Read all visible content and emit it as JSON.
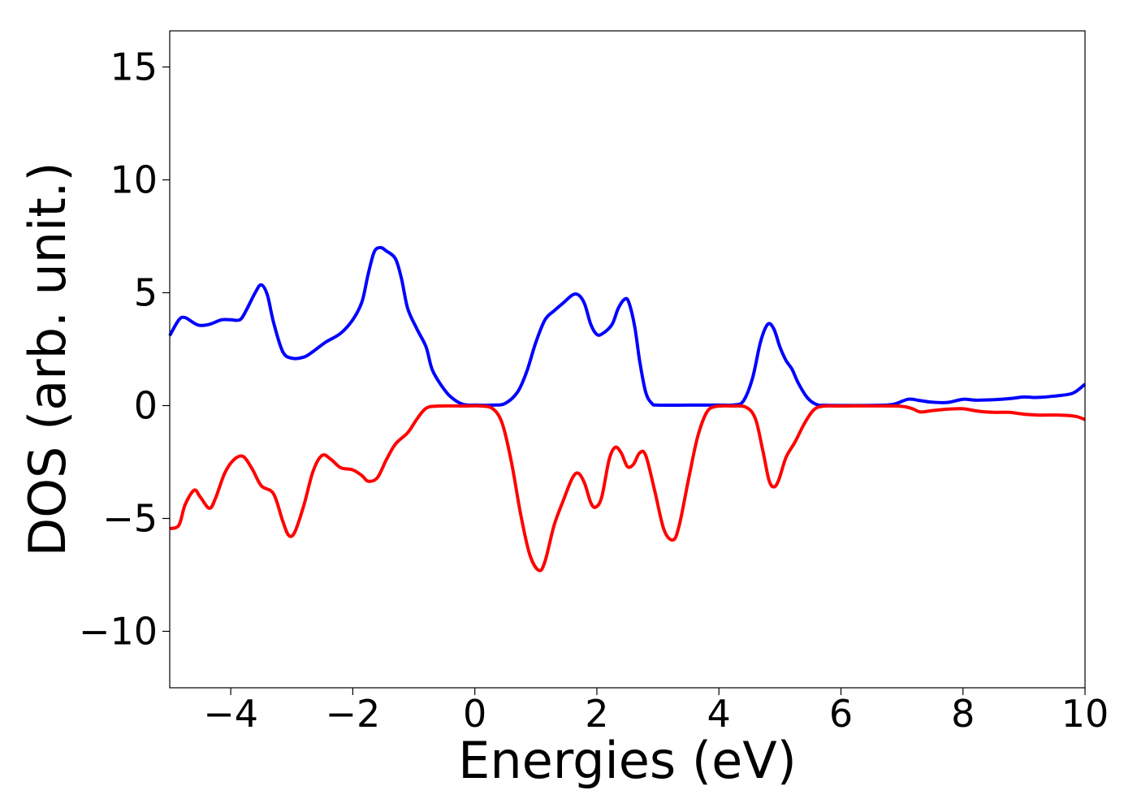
{
  "chart_data": {
    "type": "line",
    "title": "",
    "xlabel": "Energies (eV)",
    "ylabel": "DOS (arb. unit.)",
    "xlim": [
      -5,
      10
    ],
    "ylim": [
      -12.5,
      16.6
    ],
    "xticks": [
      -4,
      -2,
      0,
      2,
      4,
      6,
      8,
      10
    ],
    "xtick_labels": [
      "−4",
      "−2",
      "0",
      "2",
      "4",
      "6",
      "8",
      "10"
    ],
    "yticks": [
      -10,
      -5,
      0,
      5,
      10,
      15
    ],
    "ytick_labels": [
      "−10",
      "−5",
      "0",
      "5",
      "10",
      "15"
    ],
    "grid": false,
    "legend": "none",
    "series": [
      {
        "color": "#0000ff",
        "points": [
          [
            -5.0,
            3.1
          ],
          [
            -4.85,
            3.8
          ],
          [
            -4.75,
            3.9
          ],
          [
            -4.6,
            3.65
          ],
          [
            -4.5,
            3.55
          ],
          [
            -4.35,
            3.6
          ],
          [
            -4.15,
            3.8
          ],
          [
            -4.0,
            3.8
          ],
          [
            -3.85,
            3.8
          ],
          [
            -3.75,
            4.2
          ],
          [
            -3.6,
            5.0
          ],
          [
            -3.5,
            5.35
          ],
          [
            -3.4,
            4.9
          ],
          [
            -3.3,
            3.7
          ],
          [
            -3.15,
            2.4
          ],
          [
            -3.0,
            2.1
          ],
          [
            -2.8,
            2.15
          ],
          [
            -2.65,
            2.4
          ],
          [
            -2.45,
            2.8
          ],
          [
            -2.2,
            3.2
          ],
          [
            -2.0,
            3.8
          ],
          [
            -1.85,
            4.6
          ],
          [
            -1.75,
            5.8
          ],
          [
            -1.65,
            6.8
          ],
          [
            -1.55,
            7.0
          ],
          [
            -1.45,
            6.85
          ],
          [
            -1.3,
            6.5
          ],
          [
            -1.2,
            5.6
          ],
          [
            -1.1,
            4.3
          ],
          [
            -0.95,
            3.4
          ],
          [
            -0.8,
            2.6
          ],
          [
            -0.7,
            1.6
          ],
          [
            -0.55,
            0.9
          ],
          [
            -0.4,
            0.4
          ],
          [
            -0.2,
            0.06
          ],
          [
            0.0,
            0.02
          ],
          [
            0.3,
            0.02
          ],
          [
            0.5,
            0.1
          ],
          [
            0.7,
            0.6
          ],
          [
            0.85,
            1.5
          ],
          [
            1.0,
            2.8
          ],
          [
            1.15,
            3.8
          ],
          [
            1.3,
            4.2
          ],
          [
            1.45,
            4.55
          ],
          [
            1.6,
            4.9
          ],
          [
            1.7,
            4.9
          ],
          [
            1.8,
            4.5
          ],
          [
            1.9,
            3.6
          ],
          [
            2.0,
            3.15
          ],
          [
            2.1,
            3.2
          ],
          [
            2.25,
            3.6
          ],
          [
            2.35,
            4.3
          ],
          [
            2.45,
            4.7
          ],
          [
            2.52,
            4.6
          ],
          [
            2.62,
            3.5
          ],
          [
            2.7,
            2.0
          ],
          [
            2.8,
            0.6
          ],
          [
            2.9,
            0.1
          ],
          [
            3.0,
            0.02
          ],
          [
            3.5,
            0.02
          ],
          [
            4.0,
            0.02
          ],
          [
            4.25,
            0.03
          ],
          [
            4.4,
            0.2
          ],
          [
            4.55,
            1.2
          ],
          [
            4.68,
            2.8
          ],
          [
            4.8,
            3.6
          ],
          [
            4.9,
            3.4
          ],
          [
            5.0,
            2.6
          ],
          [
            5.1,
            2.0
          ],
          [
            5.2,
            1.6
          ],
          [
            5.3,
            1.0
          ],
          [
            5.45,
            0.35
          ],
          [
            5.6,
            0.05
          ],
          [
            5.8,
            0.01
          ],
          [
            6.5,
            0.01
          ],
          [
            6.85,
            0.05
          ],
          [
            7.1,
            0.28
          ],
          [
            7.3,
            0.22
          ],
          [
            7.5,
            0.15
          ],
          [
            7.75,
            0.14
          ],
          [
            8.0,
            0.28
          ],
          [
            8.2,
            0.24
          ],
          [
            8.5,
            0.26
          ],
          [
            8.8,
            0.32
          ],
          [
            9.0,
            0.38
          ],
          [
            9.2,
            0.36
          ],
          [
            9.5,
            0.42
          ],
          [
            9.8,
            0.55
          ],
          [
            10.0,
            0.95
          ]
        ]
      },
      {
        "color": "#ff0000",
        "points": [
          [
            -5.0,
            -5.45
          ],
          [
            -4.85,
            -5.3
          ],
          [
            -4.75,
            -4.4
          ],
          [
            -4.6,
            -3.75
          ],
          [
            -4.5,
            -4.05
          ],
          [
            -4.35,
            -4.55
          ],
          [
            -4.25,
            -4.1
          ],
          [
            -4.1,
            -3.0
          ],
          [
            -3.95,
            -2.4
          ],
          [
            -3.8,
            -2.25
          ],
          [
            -3.65,
            -2.8
          ],
          [
            -3.5,
            -3.55
          ],
          [
            -3.3,
            -3.9
          ],
          [
            -3.15,
            -5.1
          ],
          [
            -3.05,
            -5.75
          ],
          [
            -2.95,
            -5.6
          ],
          [
            -2.8,
            -4.4
          ],
          [
            -2.65,
            -2.9
          ],
          [
            -2.5,
            -2.2
          ],
          [
            -2.35,
            -2.4
          ],
          [
            -2.2,
            -2.75
          ],
          [
            -2.0,
            -2.85
          ],
          [
            -1.85,
            -3.1
          ],
          [
            -1.75,
            -3.35
          ],
          [
            -1.6,
            -3.2
          ],
          [
            -1.45,
            -2.4
          ],
          [
            -1.3,
            -1.7
          ],
          [
            -1.1,
            -1.2
          ],
          [
            -0.95,
            -0.6
          ],
          [
            -0.8,
            -0.12
          ],
          [
            -0.6,
            -0.02
          ],
          [
            -0.2,
            -0.02
          ],
          [
            0.1,
            -0.02
          ],
          [
            0.3,
            -0.15
          ],
          [
            0.45,
            -0.8
          ],
          [
            0.6,
            -2.5
          ],
          [
            0.75,
            -4.8
          ],
          [
            0.9,
            -6.6
          ],
          [
            1.05,
            -7.3
          ],
          [
            1.15,
            -6.9
          ],
          [
            1.3,
            -5.3
          ],
          [
            1.45,
            -4.2
          ],
          [
            1.6,
            -3.2
          ],
          [
            1.7,
            -3.0
          ],
          [
            1.8,
            -3.45
          ],
          [
            1.9,
            -4.3
          ],
          [
            1.98,
            -4.5
          ],
          [
            2.08,
            -4.05
          ],
          [
            2.2,
            -2.4
          ],
          [
            2.3,
            -1.85
          ],
          [
            2.4,
            -2.1
          ],
          [
            2.5,
            -2.7
          ],
          [
            2.6,
            -2.6
          ],
          [
            2.7,
            -2.1
          ],
          [
            2.8,
            -2.2
          ],
          [
            2.95,
            -3.8
          ],
          [
            3.1,
            -5.5
          ],
          [
            3.25,
            -5.95
          ],
          [
            3.35,
            -5.3
          ],
          [
            3.5,
            -3.3
          ],
          [
            3.65,
            -1.4
          ],
          [
            3.8,
            -0.3
          ],
          [
            3.95,
            -0.04
          ],
          [
            4.2,
            -0.02
          ],
          [
            4.45,
            -0.08
          ],
          [
            4.6,
            -0.6
          ],
          [
            4.72,
            -2.0
          ],
          [
            4.82,
            -3.3
          ],
          [
            4.9,
            -3.6
          ],
          [
            4.98,
            -3.3
          ],
          [
            5.1,
            -2.3
          ],
          [
            5.25,
            -1.6
          ],
          [
            5.4,
            -0.8
          ],
          [
            5.55,
            -0.2
          ],
          [
            5.7,
            -0.03
          ],
          [
            6.0,
            -0.02
          ],
          [
            6.9,
            -0.02
          ],
          [
            7.15,
            -0.12
          ],
          [
            7.3,
            -0.28
          ],
          [
            7.5,
            -0.22
          ],
          [
            7.75,
            -0.16
          ],
          [
            8.0,
            -0.14
          ],
          [
            8.25,
            -0.25
          ],
          [
            8.5,
            -0.3
          ],
          [
            8.75,
            -0.3
          ],
          [
            9.0,
            -0.38
          ],
          [
            9.25,
            -0.42
          ],
          [
            9.6,
            -0.42
          ],
          [
            9.85,
            -0.48
          ],
          [
            10.0,
            -0.62
          ]
        ]
      }
    ]
  }
}
